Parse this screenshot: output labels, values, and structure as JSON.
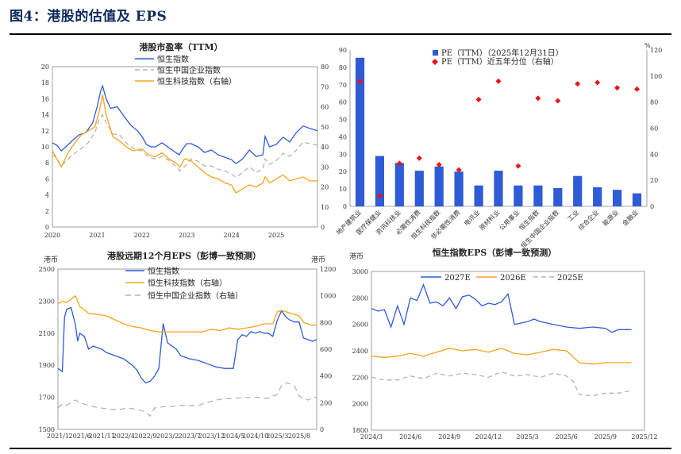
{
  "figure": {
    "title": "图4：港股的估值及 EPS"
  },
  "chart_data": [
    {
      "id": "pe",
      "type": "line",
      "title": "港股市盈率（TTM）",
      "x_ticks": [
        "2020",
        "2021",
        "2022",
        "2023",
        "2024",
        "2025"
      ],
      "x_range": [
        2020,
        2025.92
      ],
      "y_left": {
        "range": [
          0,
          20
        ],
        "ticks": [
          "0",
          "2",
          "4",
          "6",
          "8",
          "10",
          "12",
          "14",
          "16",
          "18",
          "20"
        ]
      },
      "y_right": {
        "range": [
          0,
          80
        ],
        "ticks": [
          "0",
          "10",
          "20",
          "30",
          "40",
          "50",
          "60",
          "70",
          "80"
        ]
      },
      "series": [
        {
          "name": "恒生指数",
          "color": "#2e5bd6",
          "dash": "",
          "axis": "left",
          "x": [
            2020,
            2020.1,
            2020.2,
            2020.3,
            2020.45,
            2020.6,
            2020.75,
            2020.9,
            2021,
            2021.08,
            2021.12,
            2021.2,
            2021.3,
            2021.45,
            2021.6,
            2021.75,
            2021.9,
            2022,
            2022.1,
            2022.2,
            2022.3,
            2022.45,
            2022.6,
            2022.75,
            2022.83,
            2022.92,
            2023,
            2023.1,
            2023.25,
            2023.4,
            2023.55,
            2023.7,
            2023.85,
            2024,
            2024.1,
            2024.25,
            2024.4,
            2024.55,
            2024.7,
            2024.75,
            2024.85,
            2025,
            2025.15,
            2025.3,
            2025.45,
            2025.6,
            2025.75,
            2025.92
          ],
          "y": [
            10.5,
            10.2,
            9.5,
            10,
            10.8,
            11.5,
            11.8,
            13,
            15,
            17,
            17.6,
            16,
            14.8,
            15,
            13.8,
            12.7,
            12,
            11.3,
            10.3,
            10,
            10,
            10.5,
            9.9,
            9.3,
            9,
            9.8,
            10.4,
            10.4,
            10,
            9.3,
            9.6,
            9,
            8.7,
            8.4,
            7.9,
            8.5,
            9.6,
            8.8,
            9,
            11.3,
            10,
            10.3,
            11.2,
            10.6,
            11.8,
            12.6,
            12.3,
            12
          ]
        },
        {
          "name": "恒生中国企业指数",
          "color": "#b4b4b4",
          "dash": "6,4",
          "axis": "left",
          "x": [
            2020,
            2020.1,
            2020.2,
            2020.35,
            2020.5,
            2020.65,
            2020.8,
            2020.95,
            2021.05,
            2021.12,
            2021.2,
            2021.35,
            2021.5,
            2021.65,
            2021.8,
            2022,
            2022.15,
            2022.3,
            2022.45,
            2022.6,
            2022.75,
            2022.85,
            2022.95,
            2023.1,
            2023.25,
            2023.4,
            2023.55,
            2023.7,
            2023.85,
            2024,
            2024.1,
            2024.25,
            2024.4,
            2024.55,
            2024.7,
            2024.75,
            2024.85,
            2025,
            2025.15,
            2025.3,
            2025.45,
            2025.6,
            2025.75,
            2025.92
          ],
          "y": [
            9,
            8.6,
            7.6,
            8.5,
            9.2,
            9.8,
            10.5,
            11.8,
            13.5,
            14,
            13,
            11.6,
            11.5,
            10.5,
            9.8,
            9.5,
            8.7,
            8.5,
            8.8,
            8.3,
            7.6,
            7,
            7.5,
            8.5,
            8.2,
            7.6,
            7.6,
            7.2,
            7,
            6.6,
            6.2,
            6.8,
            7.5,
            6.8,
            7.2,
            8.5,
            7.8,
            8.3,
            9.2,
            8.8,
            9.6,
            10.6,
            10.4,
            10.2
          ]
        },
        {
          "name": "恒生科技指数（右轴）",
          "color": "#f5a31a",
          "dash": "",
          "axis": "right",
          "x": [
            2020,
            2020.1,
            2020.2,
            2020.35,
            2020.5,
            2020.65,
            2020.8,
            2020.95,
            2021.05,
            2021.12,
            2021.2,
            2021.35,
            2021.5,
            2021.65,
            2021.8,
            2022,
            2022.15,
            2022.3,
            2022.45,
            2022.6,
            2022.75,
            2022.85,
            2022.95,
            2023.1,
            2023.25,
            2023.4,
            2023.55,
            2023.7,
            2023.85,
            2024,
            2024.1,
            2024.25,
            2024.4,
            2024.55,
            2024.7,
            2024.75,
            2024.85,
            2025,
            2025.15,
            2025.3,
            2025.45,
            2025.6,
            2025.75,
            2025.92
          ],
          "y": [
            38,
            34,
            30,
            37,
            42,
            46,
            48,
            50,
            58,
            66,
            56,
            45,
            43,
            40,
            38,
            39,
            36,
            35,
            37,
            34,
            32,
            30,
            34,
            33,
            30,
            27,
            25,
            24,
            22,
            21,
            17,
            19,
            21,
            20,
            22,
            25,
            22,
            24,
            26,
            23,
            24,
            25,
            23,
            23
          ]
        }
      ]
    },
    {
      "id": "sector",
      "type": "bar",
      "title": "",
      "categories": [
        "地产建筑业",
        "医疗保健业",
        "资讯科技业",
        "必需性消费",
        "恒生科技指数",
        "非必需性消费",
        "电讯业",
        "原材料业",
        "公用事业",
        "恒生指数",
        "恒生中国企业指数",
        "工业",
        "综合企业",
        "能源业",
        "金融业"
      ],
      "values": [
        85.5,
        29,
        25,
        20.5,
        23,
        20,
        12,
        20.5,
        12,
        12,
        10.5,
        17.5,
        11,
        9.5,
        7.5
      ],
      "percentile": [
        96,
        8,
        33,
        37,
        32,
        28,
        82,
        96,
        31,
        83,
        81,
        94,
        95,
        91,
        90
      ],
      "y_left": {
        "range": [
          0,
          90
        ],
        "ticks": [
          "0",
          "10",
          "20",
          "30",
          "40",
          "50",
          "60",
          "70",
          "80",
          "90"
        ]
      },
      "y_right": {
        "range": [
          0,
          120
        ],
        "ticks": [
          "0",
          "20",
          "40",
          "60",
          "80",
          "100",
          "120"
        ],
        "unit": "%"
      },
      "legend": [
        "PE（TTM）（2025年12月31日）",
        "PE（TTM）近五年分位（右轴）"
      ],
      "bar_color": "#2e5bd6",
      "marker_color": "#e8141c"
    },
    {
      "id": "eps",
      "type": "line",
      "title": "港股远期12个月EPS（彭博一致预测）",
      "left_unit": "港币",
      "right_unit": "港币",
      "x_ticks": [
        "2021/1",
        "2021/6",
        "2021/11",
        "2022/4",
        "2022/9",
        "2023/2",
        "2023/7",
        "2023/12",
        "2024/5",
        "2024/10",
        "2025/3",
        "2025/8"
      ],
      "x_range": [
        0,
        59
      ],
      "y_left": {
        "range": [
          1500,
          2500
        ],
        "ticks": [
          "1500",
          "1700",
          "1900",
          "2100",
          "2300",
          "2500"
        ]
      },
      "y_right": {
        "range": [
          0,
          1200
        ],
        "ticks": [
          "0",
          "200",
          "400",
          "600",
          "800",
          "1000",
          "1200"
        ]
      },
      "series": [
        {
          "name": "恒生指数",
          "color": "#2e5bd6",
          "dash": "",
          "axis": "left",
          "x": [
            0,
            1,
            1.5,
            2,
            3,
            4,
            4.5,
            5,
            6,
            7,
            8,
            9,
            10,
            11,
            13,
            15,
            16,
            17,
            18,
            19,
            20,
            21,
            22,
            23,
            24,
            25,
            26,
            27,
            28,
            29,
            30,
            32,
            34,
            36,
            38,
            40,
            41,
            42,
            43,
            44,
            45,
            46,
            47,
            48,
            49,
            50,
            51,
            52,
            53,
            54,
            55,
            56,
            57,
            58,
            59
          ],
          "y": [
            1880,
            1860,
            2200,
            2250,
            2260,
            2150,
            2050,
            2100,
            2080,
            2000,
            2020,
            2010,
            2000,
            1980,
            1960,
            1940,
            1920,
            1900,
            1870,
            1820,
            1790,
            1800,
            1830,
            1880,
            2160,
            2040,
            2020,
            2000,
            1960,
            1950,
            1940,
            1930,
            1910,
            1890,
            1880,
            1880,
            2060,
            2090,
            2080,
            2110,
            2100,
            2110,
            2100,
            2100,
            2080,
            2180,
            2240,
            2200,
            2180,
            2170,
            2170,
            2070,
            2060,
            2050,
            2060
          ]
        },
        {
          "name": "恒生科技指数（右轴）",
          "color": "#f5a31a",
          "dash": "",
          "axis": "right",
          "x": [
            0,
            1,
            2,
            3,
            4,
            5,
            7,
            9,
            11,
            13,
            15,
            17,
            19,
            21,
            23,
            25,
            27,
            29,
            31,
            33,
            35,
            37,
            39,
            41,
            43,
            45,
            47,
            49,
            50,
            51,
            52,
            53,
            54,
            55,
            56,
            57,
            58,
            59
          ],
          "y": [
            940,
            960,
            950,
            975,
            1000,
            920,
            870,
            860,
            850,
            820,
            790,
            770,
            760,
            740,
            730,
            730,
            730,
            730,
            730,
            730,
            750,
            740,
            760,
            750,
            760,
            770,
            790,
            790,
            880,
            890,
            880,
            870,
            860,
            850,
            800,
            790,
            780,
            780
          ]
        },
        {
          "name": "恒生中国企业指数（右轴）",
          "color": "#b4b4b4",
          "dash": "7,5",
          "axis": "right",
          "x": [
            0,
            1,
            2,
            3,
            4,
            5,
            6,
            8,
            10,
            12,
            14,
            16,
            18,
            20,
            21,
            22,
            24,
            26,
            28,
            30,
            32,
            34,
            36,
            38,
            40,
            42,
            44,
            46,
            48,
            49,
            50,
            51,
            52,
            53,
            54,
            55,
            56,
            57,
            58,
            59
          ],
          "y": [
            160,
            190,
            180,
            200,
            220,
            200,
            190,
            170,
            160,
            150,
            150,
            160,
            150,
            130,
            100,
            160,
            170,
            170,
            180,
            180,
            180,
            200,
            220,
            230,
            230,
            240,
            240,
            240,
            230,
            250,
            260,
            330,
            350,
            340,
            320,
            250,
            230,
            220,
            240,
            240
          ]
        }
      ]
    },
    {
      "id": "hsi_eps",
      "type": "line",
      "title": "恒生指数EPS（彭博一致预测）",
      "left_unit": "港币",
      "x_ticks": [
        "2024/3",
        "2024/6",
        "2024/9",
        "2024/12",
        "2025/3",
        "2025/6",
        "2025/9",
        "2025/12"
      ],
      "x_range": [
        0,
        21
      ],
      "y_left": {
        "range": [
          1800,
          3000
        ],
        "ticks": [
          "1800",
          "2000",
          "2200",
          "2400",
          "2600",
          "2800",
          "3000"
        ]
      },
      "series": [
        {
          "name": "2027E",
          "color": "#2e5bd6",
          "dash": "",
          "axis": "left",
          "x": [
            0,
            0.5,
            1,
            1.5,
            2,
            2.5,
            3,
            3.5,
            4,
            4.5,
            5,
            5.5,
            6,
            6.5,
            7,
            7.5,
            8,
            8.5,
            9,
            9.5,
            10,
            10.5,
            11,
            11.5,
            12,
            12.5,
            13,
            14,
            15,
            16,
            17,
            18,
            18.5,
            19,
            20
          ],
          "y": [
            2720,
            2700,
            2710,
            2580,
            2740,
            2600,
            2800,
            2780,
            2900,
            2760,
            2770,
            2740,
            2800,
            2720,
            2810,
            2820,
            2790,
            2740,
            2760,
            2750,
            2770,
            2830,
            2600,
            2610,
            2620,
            2640,
            2620,
            2600,
            2580,
            2570,
            2580,
            2570,
            2540,
            2560,
            2560
          ]
        },
        {
          "name": "2026E",
          "color": "#f5a31a",
          "dash": "",
          "axis": "left",
          "x": [
            0,
            1,
            2,
            3,
            4,
            5,
            6,
            7,
            8,
            9,
            10,
            11,
            12,
            13,
            14,
            15,
            16,
            17,
            18,
            19,
            20
          ],
          "y": [
            2360,
            2350,
            2360,
            2380,
            2360,
            2390,
            2420,
            2400,
            2410,
            2390,
            2420,
            2380,
            2370,
            2390,
            2410,
            2400,
            2310,
            2300,
            2310,
            2310,
            2310
          ]
        },
        {
          "name": "2025E",
          "color": "#b4b4b4",
          "dash": "6,4",
          "axis": "left",
          "x": [
            0,
            1,
            2,
            3,
            4,
            5,
            6,
            7,
            8,
            9,
            10,
            11,
            12,
            13,
            14,
            15,
            15.5,
            16,
            17,
            18,
            19,
            20
          ],
          "y": [
            2200,
            2180,
            2180,
            2210,
            2190,
            2230,
            2210,
            2230,
            2220,
            2200,
            2240,
            2210,
            2220,
            2200,
            2230,
            2210,
            2170,
            2070,
            2060,
            2080,
            2080,
            2100
          ]
        }
      ]
    }
  ]
}
